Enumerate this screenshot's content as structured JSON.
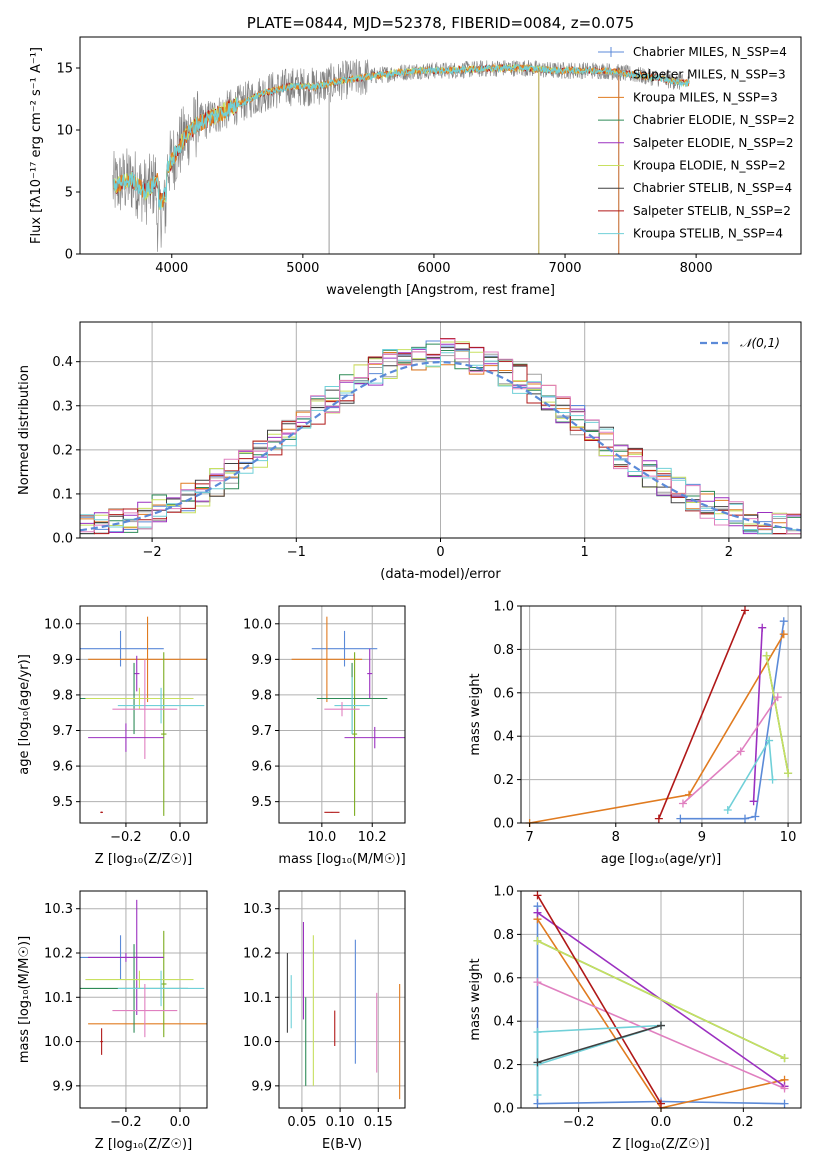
{
  "colors": {
    "Chabrier MILES": "#5b8ad8",
    "Salpeter MILES": "#a0a0a0",
    "Kroupa MILES": "#e07b20",
    "Chabrier ELODIE": "#2e8b57",
    "Salpeter ELODIE": "#9b30c0",
    "Kroupa ELODIE": "#c8e060",
    "Chabrier STELIB": "#404040",
    "Salpeter STELIB": "#b01818",
    "Kroupa STELIB": "#70d0d8",
    "gauss": "#5b8ad8",
    "gray": "#808080",
    "olive": "#7cac20",
    "pink": "#e080c0",
    "orange": "#e07b20",
    "cyan": "#70d0d8"
  },
  "chart_data": [
    {
      "type": "line",
      "title": "PLATE=0844, MJD=52378, FIBERID=0084, z=0.075",
      "xlabel": "wavelength [Angstrom, rest frame]",
      "ylabel": "Flux [fλ10⁻¹⁷ erg cm⁻² s⁻¹ A⁻¹]",
      "xlim": [
        3300,
        8800
      ],
      "ylim": [
        0,
        17.5
      ],
      "xticks": [
        "4000",
        "5000",
        "6000",
        "7000",
        "8000"
      ],
      "yticks": [
        "0",
        "5",
        "10",
        "15"
      ],
      "legend_position": "right",
      "legend": [
        "Chabrier MILES, N_SSP=4",
        "Salpeter MILES, N_SSP=3",
        "Kroupa MILES, N_SSP=3",
        "Chabrier ELODIE, N_SSP=2",
        "Salpeter ELODIE, N_SSP=2",
        "Kroupa ELODIE, N_SSP=2",
        "Chabrier STELIB, N_SSP=4",
        "Salpeter STELIB, N_SSP=2",
        "Kroupa STELIB, N_SSP=4"
      ],
      "spectrum_shape": {
        "x": [
          3550,
          3700,
          3800,
          3900,
          4000,
          4100,
          4200,
          4300,
          4500,
          4700,
          4900,
          5100,
          5300,
          5500,
          5700,
          5900,
          6100,
          6300,
          6500,
          6700,
          6900,
          7100,
          7300,
          7500,
          7700,
          7900
        ],
        "y": [
          5.5,
          6.0,
          5.0,
          6.0,
          7.5,
          9.5,
          10.5,
          11.0,
          12.0,
          13.0,
          13.5,
          13.5,
          14.0,
          14.3,
          14.6,
          14.8,
          14.8,
          14.9,
          15.0,
          15.0,
          14.8,
          14.8,
          14.8,
          14.5,
          14.2,
          13.8
        ]
      }
    },
    {
      "type": "line",
      "title": "",
      "xlabel": "(data-model)/error",
      "ylabel": "Normed distribution",
      "xlim": [
        -2.5,
        2.5
      ],
      "ylim": [
        0,
        0.49
      ],
      "xticks": [
        "−2",
        "−1",
        "0",
        "1",
        "2"
      ],
      "yticks": [
        "0.0",
        "0.1",
        "0.2",
        "0.3",
        "0.4"
      ],
      "legend": [
        "𝒩(0,1)"
      ],
      "legend_position": "upper right",
      "grid": true,
      "bin_width": 0.1
    },
    {
      "type": "scatter",
      "xlabel": "Z [log₁₀(Z/Z☉)]",
      "ylabel": "age  [log₁₀(age/yr)]",
      "xlim": [
        -0.37,
        0.1
      ],
      "ylim": [
        9.44,
        10.05
      ],
      "xticks": [
        "−0.2",
        "0.0"
      ],
      "yticks": [
        "9.5",
        "9.6",
        "9.7",
        "9.8",
        "9.9",
        "10.0"
      ],
      "grid": true,
      "points": [
        {
          "color": "Chabrier MILES",
          "x": -0.22,
          "xerr": 0.16,
          "y": 9.93,
          "yerr": 0.05
        },
        {
          "color": "orange",
          "x": -0.12,
          "xerr": 0.22,
          "y": 9.9,
          "yerr": 0.12
        },
        {
          "color": "Salpeter ELODIE",
          "x": -0.16,
          "xerr": 0.01,
          "y": 9.86,
          "yerr": 0.05
        },
        {
          "color": "olive",
          "x": -0.06,
          "xerr": 0.01,
          "y": 9.69,
          "yerr": 0.23
        },
        {
          "color": "Chabrier ELODIE",
          "x": -0.17,
          "xerr": 0.2,
          "y": 9.79,
          "yerr": 0.1
        },
        {
          "color": "Kroupa ELODIE",
          "x": -0.15,
          "xerr": 0.2,
          "y": 9.79,
          "yerr": 0.03
        },
        {
          "color": "cyan",
          "x": -0.07,
          "xerr": 0.16,
          "y": 9.77,
          "yerr": 0.05
        },
        {
          "color": "pink",
          "x": -0.13,
          "xerr": 0.12,
          "y": 9.76,
          "yerr": 0.14
        },
        {
          "color": "Salpeter ELODIE",
          "x": -0.2,
          "xerr": 0.14,
          "y": 9.68,
          "yerr": 0.04
        },
        {
          "color": "Salpeter STELIB",
          "x": -0.29,
          "xerr": 0.005,
          "y": 9.47,
          "yerr": 0.002
        }
      ]
    },
    {
      "type": "scatter",
      "xlabel": "mass [log₁₀(M/M☉)]",
      "ylabel": "",
      "xlim": [
        9.83,
        10.33
      ],
      "ylim": [
        9.44,
        10.05
      ],
      "xticks": [
        "10.0",
        "10.2"
      ],
      "yticks": [
        "9.5",
        "9.6",
        "9.7",
        "9.8",
        "9.9",
        "10.0"
      ],
      "grid": true,
      "points": [
        {
          "color": "Chabrier MILES",
          "x": 10.09,
          "xerr": 0.13,
          "y": 9.93,
          "yerr": 0.05
        },
        {
          "color": "orange",
          "x": 10.02,
          "xerr": 0.14,
          "y": 9.9,
          "yerr": 0.12
        },
        {
          "color": "Salpeter ELODIE",
          "x": 10.19,
          "xerr": 0.01,
          "y": 9.86,
          "yerr": 0.07
        },
        {
          "color": "olive",
          "x": 10.13,
          "xerr": 0.01,
          "y": 9.69,
          "yerr": 0.23
        },
        {
          "color": "Chabrier ELODIE",
          "x": 10.12,
          "xerr": 0.14,
          "y": 9.79,
          "yerr": 0.1
        },
        {
          "color": "cyan",
          "x": 10.12,
          "xerr": 0.07,
          "y": 9.77,
          "yerr": 0.08
        },
        {
          "color": "pink",
          "x": 10.08,
          "xerr": 0.07,
          "y": 9.76,
          "yerr": 0.02
        },
        {
          "color": "Salpeter ELODIE",
          "x": 10.21,
          "xerr": 0.12,
          "y": 9.68,
          "yerr": 0.03
        },
        {
          "color": "Salpeter STELIB",
          "x": 10.04,
          "xerr": 0.03,
          "y": 9.47,
          "yerr": 0.001
        }
      ]
    },
    {
      "type": "line",
      "xlabel": "age  [log₁₀(age/yr)]",
      "ylabel": "mass weight",
      "xlim": [
        6.9,
        10.15
      ],
      "ylim": [
        0,
        1
      ],
      "xticks": [
        "7",
        "8",
        "9",
        "10"
      ],
      "yticks": [
        "0.0",
        "0.2",
        "0.4",
        "0.6",
        "0.8",
        "1.0"
      ],
      "grid": true,
      "series": [
        {
          "color": "Chabrier MILES",
          "x": [
            8.75,
            9.5,
            9.62,
            9.95
          ],
          "y": [
            0.02,
            0.02,
            0.03,
            0.93
          ]
        },
        {
          "color": "orange",
          "x": [
            7.0,
            8.85,
            9.95
          ],
          "y": [
            0.0,
            0.13,
            0.87
          ]
        },
        {
          "color": "Salpeter ELODIE",
          "x": [
            9.6,
            9.7
          ],
          "y": [
            0.1,
            0.9
          ]
        },
        {
          "color": "Chabrier ELODIE",
          "x": [
            9.75,
            10.0
          ],
          "y": [
            0.77,
            0.23
          ]
        },
        {
          "color": "Kroupa ELODIE",
          "x": [
            9.75,
            10.0
          ],
          "y": [
            0.77,
            0.23
          ]
        },
        {
          "color": "pink",
          "x": [
            8.78,
            9.45,
            9.88
          ],
          "y": [
            0.09,
            0.33,
            0.58
          ]
        },
        {
          "color": "cyan",
          "x": [
            9.3,
            9.78,
            9.82
          ],
          "y": [
            0.06,
            0.38,
            0.2
          ]
        },
        {
          "color": "Salpeter STELIB",
          "x": [
            8.5,
            9.5
          ],
          "y": [
            0.02,
            0.98
          ]
        }
      ]
    },
    {
      "type": "scatter",
      "xlabel": "Z [log₁₀(Z/Z☉)]",
      "ylabel": "mass [log₁₀(M/M☉)]",
      "xlim": [
        -0.37,
        0.1
      ],
      "ylim": [
        9.85,
        10.34
      ],
      "xticks": [
        "−0.2",
        "0.0"
      ],
      "yticks": [
        "9.9",
        "10.0",
        "10.1",
        "10.2",
        "10.3"
      ],
      "grid": true,
      "points": [
        {
          "color": "Chabrier MILES",
          "x": -0.22,
          "xerr": 0.16,
          "y": 10.19,
          "yerr": 0.05
        },
        {
          "color": "orange",
          "x": -0.12,
          "xerr": 0.22,
          "y": 10.04,
          "yerr": 0.0
        },
        {
          "color": "Salpeter ELODIE",
          "x": -0.16,
          "xerr": 0.01,
          "y": 10.19,
          "yerr": 0.13
        },
        {
          "color": "olive",
          "x": -0.06,
          "xerr": 0.01,
          "y": 10.13,
          "yerr": 0.12
        },
        {
          "color": "Chabrier ELODIE",
          "x": -0.17,
          "xerr": 0.2,
          "y": 10.12,
          "yerr": 0.1
        },
        {
          "color": "Kroupa ELODIE",
          "x": -0.15,
          "xerr": 0.2,
          "y": 10.14,
          "yerr": 0.02
        },
        {
          "color": "cyan",
          "x": -0.07,
          "xerr": 0.16,
          "y": 10.12,
          "yerr": 0.04
        },
        {
          "color": "pink",
          "x": -0.13,
          "xerr": 0.12,
          "y": 10.07,
          "yerr": 0.06
        },
        {
          "color": "Salpeter ELODIE",
          "x": -0.2,
          "xerr": 0.14,
          "y": 10.19,
          "yerr": 0.01
        },
        {
          "color": "Salpeter STELIB",
          "x": -0.29,
          "xerr": 0.005,
          "y": 10.0,
          "yerr": 0.03
        }
      ]
    },
    {
      "type": "scatter",
      "xlabel": "E(B-V)",
      "ylabel": "",
      "xlim": [
        0.02,
        0.185
      ],
      "ylim": [
        9.85,
        10.34
      ],
      "xticks": [
        "0.05",
        "0.10",
        "0.15"
      ],
      "yticks": [
        "9.9",
        "10.0",
        "10.1",
        "10.2",
        "10.3"
      ],
      "grid": true,
      "points": [
        {
          "color": "Chabrier STELIB",
          "x": 0.031,
          "y": 10.11,
          "yerr": 0.09
        },
        {
          "color": "cyan",
          "x": 0.036,
          "y": 10.09,
          "yerr": 0.06
        },
        {
          "color": "Salpeter ELODIE",
          "x": 0.052,
          "y": 10.16,
          "yerr": 0.11
        },
        {
          "color": "Chabrier ELODIE",
          "x": 0.055,
          "y": 10.0,
          "yerr": 0.1
        },
        {
          "color": "Kroupa ELODIE",
          "x": 0.065,
          "y": 10.07,
          "yerr": 0.17
        },
        {
          "color": "Salpeter STELIB",
          "x": 0.093,
          "y": 10.03,
          "yerr": 0.04
        },
        {
          "color": "Chabrier MILES",
          "x": 0.12,
          "y": 10.09,
          "yerr": 0.14
        },
        {
          "color": "pink",
          "x": 0.148,
          "y": 10.02,
          "yerr": 0.09
        },
        {
          "color": "orange",
          "x": 0.178,
          "y": 10.0,
          "yerr": 0.13
        }
      ]
    },
    {
      "type": "line",
      "xlabel": "Z [log₁₀(Z/Z☉)]",
      "ylabel": "mass weight",
      "xlim": [
        -0.34,
        0.34
      ],
      "ylim": [
        0,
        1
      ],
      "xticks": [
        "−0.2",
        "0.0",
        "0.2"
      ],
      "yticks": [
        "0.0",
        "0.2",
        "0.4",
        "0.6",
        "0.8",
        "1.0"
      ],
      "grid": true,
      "series": [
        {
          "color": "Chabrier MILES",
          "x": [
            -0.3,
            -0.3,
            0.0,
            0.3
          ],
          "y": [
            0.93,
            0.02,
            0.03,
            0.02
          ]
        },
        {
          "color": "orange",
          "x": [
            -0.3,
            0.0,
            0.3
          ],
          "y": [
            0.87,
            0.0,
            0.13
          ]
        },
        {
          "color": "Salpeter ELODIE",
          "x": [
            -0.3,
            0.3
          ],
          "y": [
            0.9,
            0.1
          ]
        },
        {
          "color": "Chabrier ELODIE",
          "x": [
            -0.3,
            0.3
          ],
          "y": [
            0.77,
            0.23
          ]
        },
        {
          "color": "Kroupa ELODIE",
          "x": [
            -0.3,
            0.3
          ],
          "y": [
            0.77,
            0.23
          ]
        },
        {
          "color": "pink",
          "x": [
            -0.3,
            0.3
          ],
          "y": [
            0.58,
            0.09
          ]
        },
        {
          "color": "Salpeter STELIB",
          "x": [
            -0.3,
            0.0
          ],
          "y": [
            0.98,
            0.02
          ]
        },
        {
          "color": "cyan",
          "x": [
            -0.3,
            -0.3,
            0.0,
            -0.3
          ],
          "y": [
            0.06,
            0.35,
            0.38,
            0.2
          ]
        },
        {
          "color": "Chabrier STELIB",
          "x": [
            -0.3,
            0.0
          ],
          "y": [
            0.21,
            0.38
          ]
        }
      ]
    }
  ]
}
